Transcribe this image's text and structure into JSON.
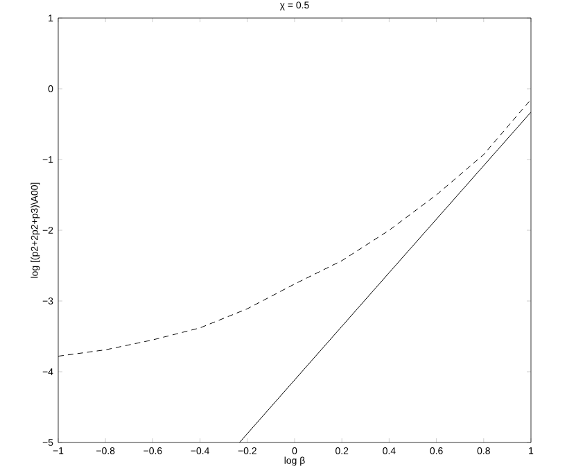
{
  "chart_data": {
    "type": "line",
    "title": "χ =  0.5",
    "xlabel": "log β",
    "ylabel": "log [(p2+2p2+p3)\\A00]",
    "xlim": [
      -1,
      1
    ],
    "ylim": [
      -5,
      1
    ],
    "xticks": [
      {
        "value": -1,
        "label": "−1"
      },
      {
        "value": -0.8,
        "label": "−0.8"
      },
      {
        "value": -0.6,
        "label": "−0.6"
      },
      {
        "value": -0.4,
        "label": "−0.4"
      },
      {
        "value": -0.2,
        "label": "−0.2"
      },
      0,
      0.2,
      0.4,
      0.6,
      0.8,
      1
    ],
    "yticks": [
      {
        "value": -5,
        "label": "−5"
      },
      {
        "value": -4,
        "label": "−4"
      },
      {
        "value": -3,
        "label": "−3"
      },
      {
        "value": -2,
        "label": "−2"
      },
      {
        "value": -1,
        "label": "−1"
      },
      0,
      1
    ],
    "grid": false,
    "marker": "none",
    "series": [
      {
        "color": "#000000",
        "line_style": "dashed",
        "x": [
          -1,
          -0.8,
          -0.6,
          -0.4,
          -0.2,
          0,
          0.2,
          0.4,
          0.6,
          0.8,
          1
        ],
        "values": [
          -3.78,
          -3.69,
          -3.55,
          -3.38,
          -3.11,
          -2.76,
          -2.43,
          -2.0,
          -1.5,
          -0.93,
          -0.15
        ]
      },
      {
        "color": "#000000",
        "line_style": "solid",
        "x": [
          -0.233,
          0.4,
          1
        ],
        "values": [
          -5,
          -2.6,
          -0.33
        ]
      }
    ]
  }
}
